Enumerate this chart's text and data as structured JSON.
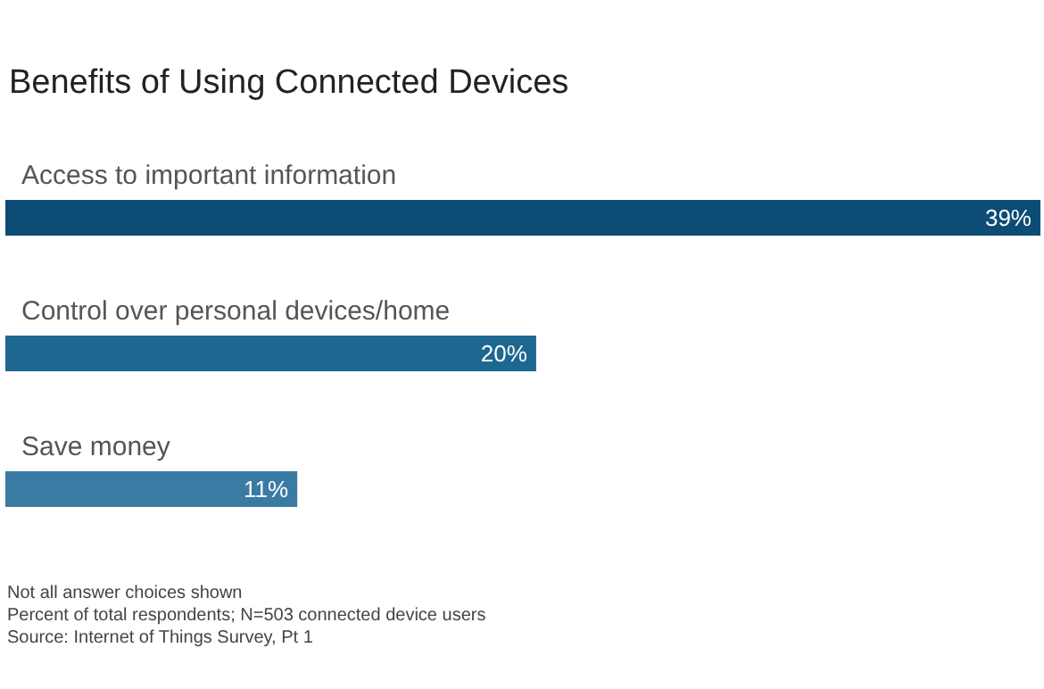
{
  "chart_data": {
    "type": "bar",
    "orientation": "horizontal",
    "title": "Benefits of Using Connected Devices",
    "categories": [
      "Access to important information",
      "Control over personal devices/home",
      "Save money"
    ],
    "values": [
      39,
      20,
      11
    ],
    "colors": [
      "#0d4c74",
      "#1d6791",
      "#3a7ba3"
    ],
    "data_labels": true,
    "value_labels": [
      "39%",
      "20%",
      "11%"
    ],
    "annotations": [
      "Not all answer choices shown",
      "Percent of total respondents; N=503 connected device users",
      "Source: Internet of Things Survey, Pt 1"
    ]
  }
}
